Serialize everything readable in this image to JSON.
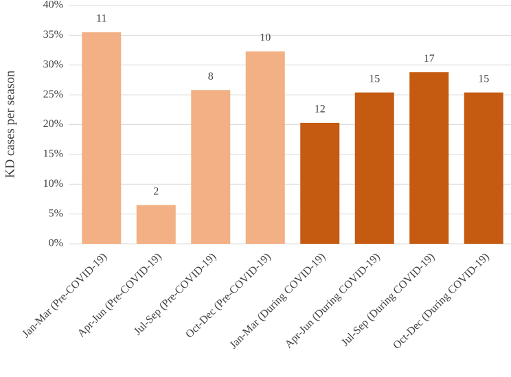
{
  "chart_data": {
    "type": "bar",
    "y_label": "KD cases per season",
    "categories": [
      "Jan-Mar (Pre-COVID-19)",
      "Apr-Jun (Pre-COVID-19)",
      "Jul-Sep (Pre-COVID-19)",
      "Oct-Dec (Pre-COVID-19)",
      "Jan-Mar (During COVID-19)",
      "Apr-Jun (During COVID-19)",
      "Jul-Sep (During COVID-19)",
      "Oct-Dec (During COVID-19)"
    ],
    "values": [
      35.5,
      6.5,
      25.8,
      32.3,
      20.3,
      25.4,
      28.8,
      25.4
    ],
    "counts": [
      11,
      2,
      8,
      10,
      12,
      15,
      17,
      15
    ],
    "colors": [
      "#f2b084",
      "#f2b084",
      "#f2b084",
      "#f2b084",
      "#c55a11",
      "#c55a11",
      "#c55a11",
      "#c55a11"
    ],
    "ylim": [
      0,
      40
    ],
    "yticks": [
      {
        "value": 0,
        "label": "0%"
      },
      {
        "value": 5,
        "label": "5%"
      },
      {
        "value": 10,
        "label": "10%"
      },
      {
        "value": 15,
        "label": "15%"
      },
      {
        "value": 20,
        "label": "20%"
      },
      {
        "value": 25,
        "label": "25%"
      },
      {
        "value": 30,
        "label": "30%"
      },
      {
        "value": 35,
        "label": "35%"
      },
      {
        "value": 40,
        "label": "40%"
      }
    ],
    "grid": true
  }
}
